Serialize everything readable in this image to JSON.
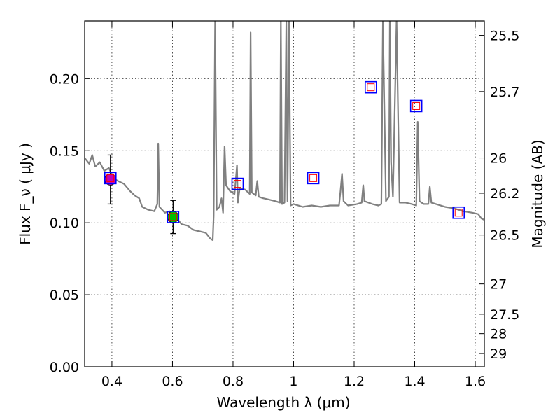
{
  "chart_data": {
    "type": "scatter",
    "xlabel": "Wavelength  λ (μm)",
    "ylabel": "Flux  F_ν  ( μJy )",
    "ylabel_right": "Magnitude (AB)",
    "xlim": [
      0.31,
      1.63
    ],
    "ylim": [
      0.0,
      0.24
    ],
    "x_ticks": [
      0.4,
      0.6,
      0.8,
      1.0,
      1.2,
      1.4,
      1.6
    ],
    "x_tick_labels": [
      "0.4",
      "0.6",
      "0.8",
      "1",
      "1.2",
      "1.4",
      "1.6"
    ],
    "y_ticks": [
      0.0,
      0.05,
      0.1,
      0.15,
      0.2
    ],
    "y_tick_labels": [
      "0.00",
      "0.05",
      "0.10",
      "0.15",
      "0.20"
    ],
    "mag_ticks": [
      {
        "label": "25.5",
        "flux": 0.23
      },
      {
        "label": "25.7",
        "flux": 0.191
      },
      {
        "label": "26",
        "flux": 0.145
      },
      {
        "label": "26.2",
        "flux": 0.1205
      },
      {
        "label": "26.5",
        "flux": 0.0915
      },
      {
        "label": "27",
        "flux": 0.0575
      },
      {
        "label": "27.5",
        "flux": 0.0365
      },
      {
        "label": "28",
        "flux": 0.023
      },
      {
        "label": "29",
        "flux": 0.0092
      }
    ],
    "grid": true,
    "series": [
      {
        "kind": "line",
        "color": "#808080",
        "points": [
          [
            0.31,
            0.145
          ],
          [
            0.325,
            0.141
          ],
          [
            0.335,
            0.147
          ],
          [
            0.345,
            0.139
          ],
          [
            0.36,
            0.142
          ],
          [
            0.375,
            0.136
          ],
          [
            0.39,
            0.138
          ],
          [
            0.405,
            0.131
          ],
          [
            0.42,
            0.129
          ],
          [
            0.44,
            0.127
          ],
          [
            0.46,
            0.122
          ],
          [
            0.475,
            0.119
          ],
          [
            0.49,
            0.117
          ],
          [
            0.5,
            0.111
          ],
          [
            0.52,
            0.109
          ],
          [
            0.54,
            0.108
          ],
          [
            0.55,
            0.113
          ],
          [
            0.553,
            0.155
          ],
          [
            0.557,
            0.111
          ],
          [
            0.575,
            0.107
          ],
          [
            0.59,
            0.108
          ],
          [
            0.61,
            0.104
          ],
          [
            0.63,
            0.099
          ],
          [
            0.65,
            0.098
          ],
          [
            0.67,
            0.095
          ],
          [
            0.69,
            0.094
          ],
          [
            0.71,
            0.093
          ],
          [
            0.725,
            0.089
          ],
          [
            0.733,
            0.088
          ],
          [
            0.736,
            0.105
          ],
          [
            0.741,
            0.24
          ],
          [
            0.746,
            0.109
          ],
          [
            0.755,
            0.111
          ],
          [
            0.762,
            0.117
          ],
          [
            0.767,
            0.107
          ],
          [
            0.772,
            0.153
          ],
          [
            0.777,
            0.126
          ],
          [
            0.79,
            0.122
          ],
          [
            0.805,
            0.12
          ],
          [
            0.81,
            0.132
          ],
          [
            0.813,
            0.14
          ],
          [
            0.816,
            0.114
          ],
          [
            0.822,
            0.124
          ],
          [
            0.84,
            0.123
          ],
          [
            0.855,
            0.12
          ],
          [
            0.858,
            0.232
          ],
          [
            0.862,
            0.121
          ],
          [
            0.875,
            0.119
          ],
          [
            0.88,
            0.129
          ],
          [
            0.885,
            0.118
          ],
          [
            0.9,
            0.117
          ],
          [
            0.92,
            0.116
          ],
          [
            0.94,
            0.115
          ],
          [
            0.955,
            0.114
          ],
          [
            0.958,
            0.24
          ],
          [
            0.962,
            0.113
          ],
          [
            0.97,
            0.114
          ],
          [
            0.976,
            0.24
          ],
          [
            0.98,
            0.115
          ],
          [
            0.985,
            0.24
          ],
          [
            0.99,
            0.112
          ],
          [
            1.0,
            0.113
          ],
          [
            1.03,
            0.111
          ],
          [
            1.06,
            0.112
          ],
          [
            1.09,
            0.111
          ],
          [
            1.12,
            0.112
          ],
          [
            1.15,
            0.112
          ],
          [
            1.155,
            0.122
          ],
          [
            1.16,
            0.134
          ],
          [
            1.165,
            0.115
          ],
          [
            1.18,
            0.112
          ],
          [
            1.21,
            0.113
          ],
          [
            1.225,
            0.114
          ],
          [
            1.23,
            0.126
          ],
          [
            1.234,
            0.115
          ],
          [
            1.26,
            0.113
          ],
          [
            1.28,
            0.112
          ],
          [
            1.29,
            0.113
          ],
          [
            1.295,
            0.24
          ],
          [
            1.305,
            0.115
          ],
          [
            1.315,
            0.118
          ],
          [
            1.318,
            0.24
          ],
          [
            1.322,
            0.142
          ],
          [
            1.328,
            0.118
          ],
          [
            1.34,
            0.24
          ],
          [
            1.35,
            0.114
          ],
          [
            1.37,
            0.114
          ],
          [
            1.39,
            0.113
          ],
          [
            1.405,
            0.112
          ],
          [
            1.41,
            0.17
          ],
          [
            1.416,
            0.115
          ],
          [
            1.43,
            0.113
          ],
          [
            1.445,
            0.113
          ],
          [
            1.45,
            0.125
          ],
          [
            1.455,
            0.114
          ],
          [
            1.47,
            0.113
          ],
          [
            1.5,
            0.111
          ],
          [
            1.53,
            0.11
          ],
          [
            1.56,
            0.108
          ],
          [
            1.59,
            0.107
          ],
          [
            1.61,
            0.106
          ],
          [
            1.62,
            0.103
          ],
          [
            1.63,
            0.102
          ]
        ]
      },
      {
        "kind": "model-photometry",
        "edge_color": "#0000ff",
        "inner_color": "#ff0000",
        "points": [
          [
            0.395,
            0.131
          ],
          [
            0.602,
            0.104
          ],
          [
            0.815,
            0.127
          ],
          [
            1.065,
            0.131
          ],
          [
            1.255,
            0.194
          ],
          [
            1.405,
            0.181
          ],
          [
            1.545,
            0.107
          ]
        ]
      },
      {
        "kind": "observed",
        "points": [
          {
            "x": 0.395,
            "y": 0.13,
            "yerr": 0.017,
            "color": "#bf00bf"
          },
          {
            "x": 0.602,
            "y": 0.104,
            "yerr": 0.0115,
            "color": "#00bf00"
          }
        ]
      }
    ]
  }
}
